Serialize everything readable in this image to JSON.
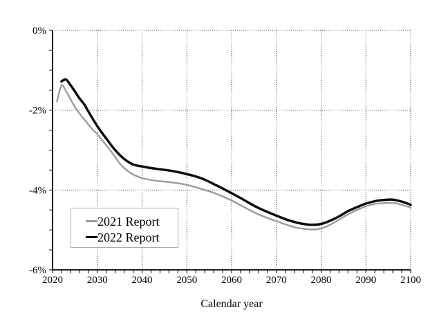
{
  "chart_data": {
    "type": "line",
    "title": "",
    "xlabel": "Calendar year",
    "ylabel": "",
    "xlim": [
      2020,
      2100
    ],
    "ylim": [
      -6,
      0
    ],
    "x_ticks": {
      "major": [
        2020,
        2030,
        2040,
        2050,
        2060,
        2070,
        2080,
        2090,
        2100
      ],
      "major_labels": [
        "2020",
        "2030",
        "2040",
        "2050",
        "2060",
        "2070",
        "2080",
        "2090",
        "2100"
      ],
      "minor_step": 2
    },
    "y_ticks": {
      "major_values": [
        0,
        -2,
        -4,
        -6
      ],
      "major_labels": [
        "0%",
        "-2%",
        "-4%",
        "-6%"
      ],
      "minor_step": 0.5
    },
    "grid": {
      "x_major": true,
      "y_major": true,
      "style": "dotted"
    },
    "legend": {
      "position": "lower-left"
    },
    "series": [
      {
        "name": "2021 Report",
        "color": "#9b9b9b",
        "line_width": 2.4,
        "x": [
          2021,
          2022,
          2023,
          2024,
          2025,
          2026,
          2027,
          2028,
          2029,
          2030,
          2031,
          2032,
          2033,
          2034,
          2035,
          2036,
          2037,
          2038,
          2039,
          2040,
          2042,
          2044,
          2046,
          2048,
          2050,
          2052,
          2054,
          2056,
          2058,
          2060,
          2062,
          2064,
          2066,
          2068,
          2070,
          2072,
          2074,
          2076,
          2078,
          2080,
          2082,
          2084,
          2086,
          2088,
          2090,
          2092,
          2094,
          2096,
          2098,
          2100
        ],
        "y": [
          -1.78,
          -1.38,
          -1.52,
          -1.72,
          -1.92,
          -2.08,
          -2.22,
          -2.36,
          -2.49,
          -2.6,
          -2.74,
          -2.88,
          -3.02,
          -3.18,
          -3.33,
          -3.45,
          -3.54,
          -3.61,
          -3.66,
          -3.7,
          -3.75,
          -3.78,
          -3.8,
          -3.83,
          -3.87,
          -3.93,
          -4.0,
          -4.07,
          -4.16,
          -4.26,
          -4.38,
          -4.5,
          -4.61,
          -4.7,
          -4.78,
          -4.86,
          -4.93,
          -4.97,
          -4.99,
          -4.96,
          -4.87,
          -4.74,
          -4.61,
          -4.5,
          -4.41,
          -4.35,
          -4.33,
          -4.32,
          -4.37,
          -4.44
        ]
      },
      {
        "name": "2022 Report",
        "color": "#0d0d0d",
        "line_width": 3.5,
        "x": [
          2022,
          2023,
          2024,
          2025,
          2026,
          2027,
          2028,
          2029,
          2030,
          2031,
          2032,
          2033,
          2034,
          2035,
          2036,
          2037,
          2038,
          2039,
          2040,
          2042,
          2044,
          2046,
          2048,
          2050,
          2052,
          2054,
          2056,
          2058,
          2060,
          2062,
          2064,
          2066,
          2068,
          2070,
          2072,
          2074,
          2076,
          2078,
          2080,
          2082,
          2084,
          2086,
          2088,
          2090,
          2092,
          2094,
          2096,
          2098,
          2100
        ],
        "y": [
          -1.28,
          -1.23,
          -1.37,
          -1.53,
          -1.7,
          -1.84,
          -2.03,
          -2.22,
          -2.4,
          -2.56,
          -2.71,
          -2.86,
          -3.0,
          -3.12,
          -3.22,
          -3.3,
          -3.36,
          -3.39,
          -3.41,
          -3.45,
          -3.48,
          -3.51,
          -3.55,
          -3.6,
          -3.66,
          -3.74,
          -3.85,
          -3.96,
          -4.08,
          -4.2,
          -4.33,
          -4.45,
          -4.55,
          -4.64,
          -4.73,
          -4.8,
          -4.85,
          -4.87,
          -4.85,
          -4.77,
          -4.66,
          -4.53,
          -4.43,
          -4.34,
          -4.28,
          -4.25,
          -4.24,
          -4.29,
          -4.37
        ]
      }
    ]
  },
  "colors": {
    "background": "#ffffff",
    "axis": "#000000",
    "grid": "#4d4d4d",
    "text": "#000000",
    "legend_border": "#a9a9a9"
  }
}
